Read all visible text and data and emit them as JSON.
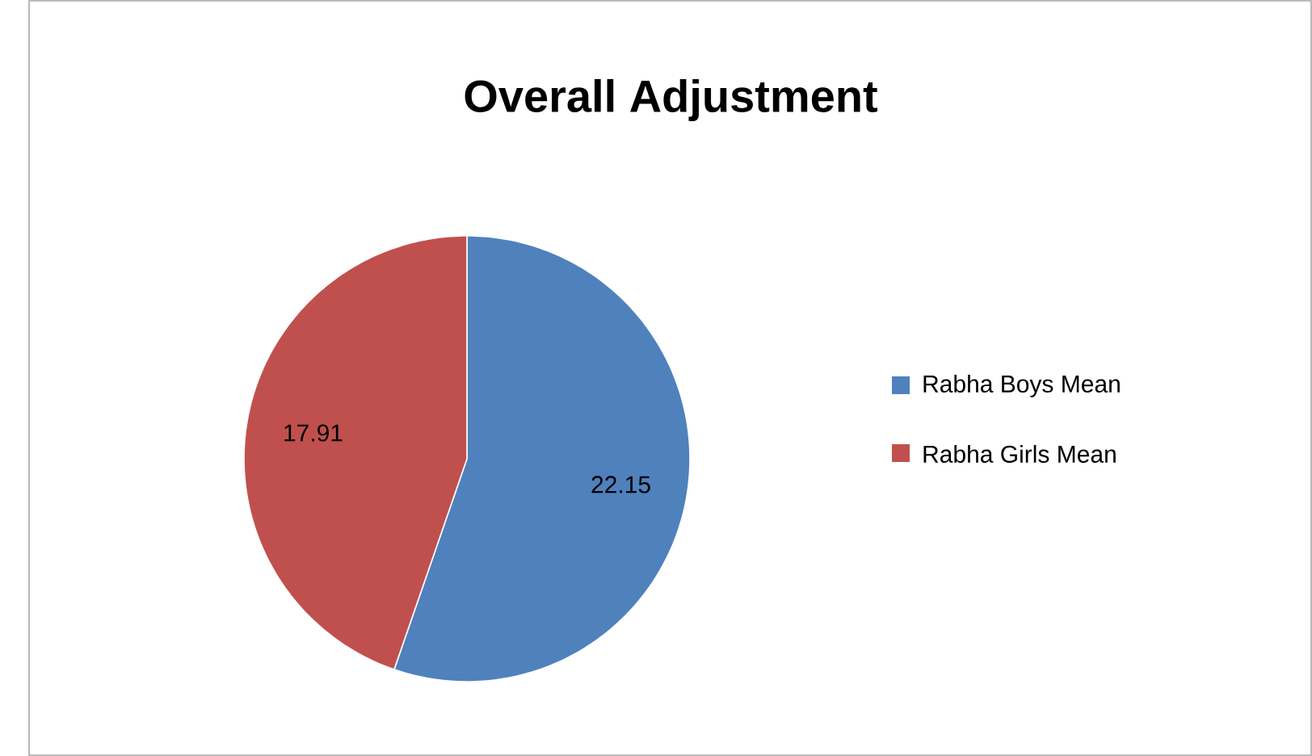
{
  "chart_data": {
    "type": "pie",
    "title": "Overall Adjustment",
    "categories": [
      "Rabha Boys Mean",
      "Rabha Girls Mean"
    ],
    "values": [
      22.15,
      17.91
    ],
    "colors": [
      "#4f81bd",
      "#c0504d"
    ],
    "data_labels": true,
    "legend": "right"
  }
}
